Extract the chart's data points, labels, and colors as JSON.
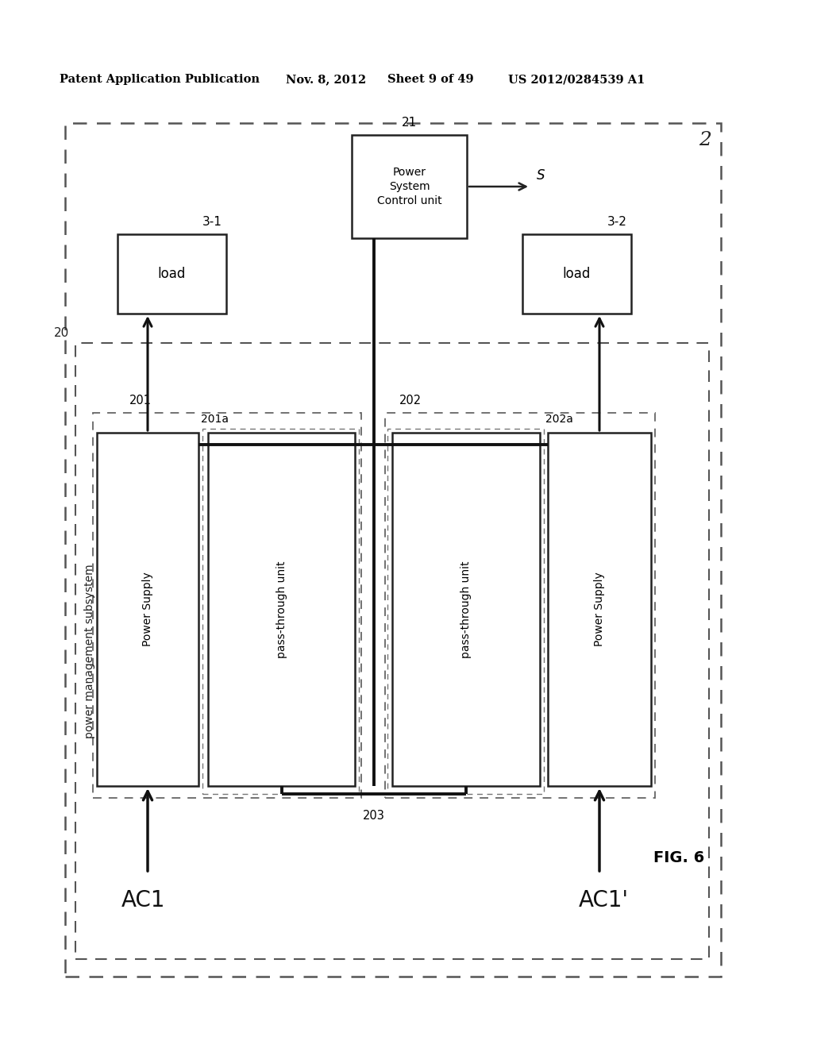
{
  "bg_color": "#ffffff",
  "header_text": "Patent Application Publication",
  "header_date": "Nov. 8, 2012",
  "header_sheet": "Sheet 9 of 49",
  "header_patent": "US 2012/0284539 A1",
  "fig_label": "FIG. 6",
  "diagram_label": "2",
  "label_20": "20",
  "label_21": "21",
  "label_201": "201",
  "label_201a": "201a",
  "label_202": "202",
  "label_202a": "202a",
  "label_31": "3-1",
  "label_32": "3-2",
  "label_203": "203",
  "ac1_label": "AC1",
  "ac1p_label": "AC1'",
  "s_label": "S",
  "pms_text": "power management subsystem",
  "psc_text": "Power\nSystem\nControl unit",
  "load_text": "load",
  "ps_text": "Power Supply",
  "pt_text": "pass-through unit"
}
